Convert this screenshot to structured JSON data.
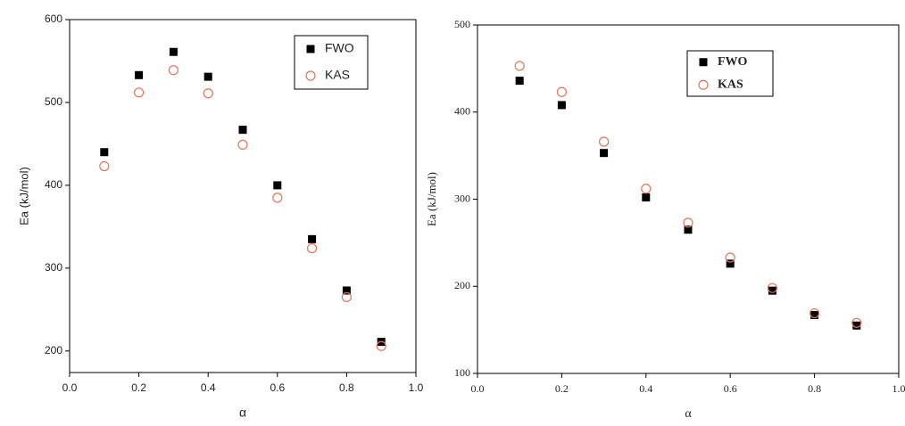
{
  "chart_data": [
    {
      "type": "scatter",
      "xlabel": "α",
      "ylabel": "Ea (kJ/mol)",
      "x": [
        0.1,
        0.2,
        0.3,
        0.4,
        0.5,
        0.6,
        0.7,
        0.8,
        0.9
      ],
      "series": [
        {
          "name": "FWO",
          "color": "#000000",
          "marker": "square",
          "values": [
            440,
            533,
            561,
            531,
            467,
            400,
            335,
            273,
            211
          ]
        },
        {
          "name": "KAS",
          "color": "#e8735a",
          "marker": "circle",
          "values": [
            423,
            512,
            539,
            511,
            449,
            385,
            324,
            265,
            206
          ]
        }
      ],
      "xlim": [
        0,
        1
      ],
      "xticks": [
        {
          "value": 0,
          "label": "0.0"
        },
        0.2,
        0.4,
        0.6,
        0.8,
        {
          "value": 1,
          "label": "1.0"
        }
      ],
      "ylim": [
        174,
        600
      ],
      "yticks": [
        200,
        300,
        400,
        500,
        600
      ],
      "legend": "upper right"
    },
    {
      "type": "scatter",
      "xlabel": "α",
      "ylabel": "Ea (kJ/mol)",
      "x": [
        0.1,
        0.2,
        0.3,
        0.4,
        0.5,
        0.6,
        0.7,
        0.8,
        0.9
      ],
      "series": [
        {
          "name": "FWO",
          "color": "#000000",
          "marker": "square",
          "values": [
            436,
            408,
            353,
            302,
            265,
            226,
            195,
            167,
            155
          ]
        },
        {
          "name": "KAS",
          "color": "#e8735a",
          "marker": "circle",
          "values": [
            453,
            423,
            366,
            312,
            273,
            233,
            198,
            169,
            158
          ]
        }
      ],
      "xlim": [
        0,
        1
      ],
      "xticks": [
        {
          "value": 0,
          "label": "0.0"
        },
        0.2,
        0.4,
        0.6,
        0.8,
        {
          "value": 1,
          "label": "1.0"
        }
      ],
      "ylim": [
        100,
        500
      ],
      "yticks": [
        100,
        200,
        300,
        400,
        500
      ],
      "legend": "upper right"
    }
  ]
}
